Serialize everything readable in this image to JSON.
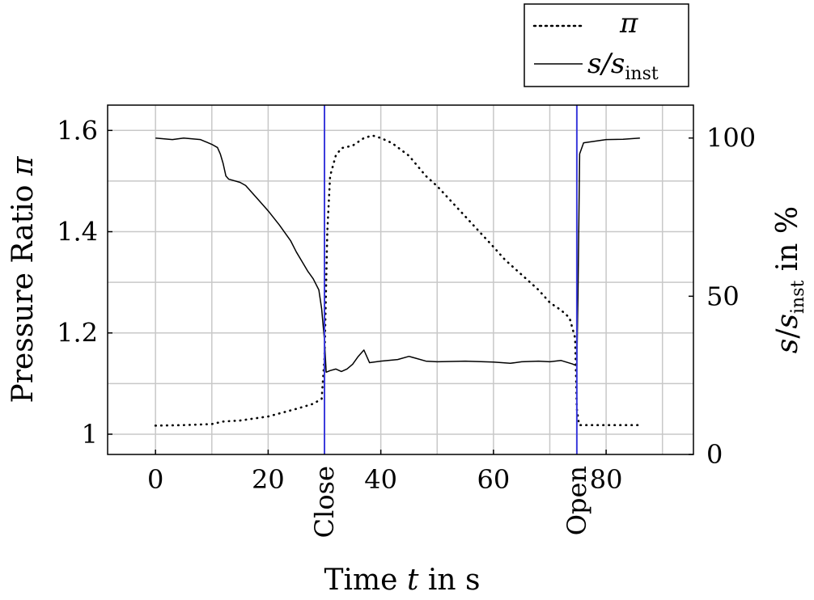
{
  "chart_data": {
    "type": "line",
    "xlabel": "Time t in s",
    "ylabel_left": "Pressure Ratio π",
    "ylabel_right": "s/s_inst in %",
    "xlim": [
      -8.5,
      95.5
    ],
    "ylim_left": [
      0.96,
      1.65
    ],
    "ylim_right": [
      0,
      110.4
    ],
    "grid": true,
    "legend_placement": "top-right, outside plot",
    "x_ticks": [
      {
        "value": 0,
        "label": "0"
      },
      {
        "value": 20,
        "label": "20"
      },
      {
        "value": 40,
        "label": "40"
      },
      {
        "value": 60,
        "label": "60"
      },
      {
        "value": 80,
        "label": "80"
      }
    ],
    "y_ticks_left": [
      {
        "value": 1.0,
        "label": "1"
      },
      {
        "value": 1.2,
        "label": "1.2"
      },
      {
        "value": 1.4,
        "label": "1.4"
      },
      {
        "value": 1.6,
        "label": "1.6"
      }
    ],
    "y_ticks_right": [
      {
        "value": 0,
        "label": "0"
      },
      {
        "value": 50,
        "label": "50"
      },
      {
        "value": 100,
        "label": "100"
      }
    ],
    "markers": [
      {
        "x": 30,
        "label": "Close",
        "color": "#3b3bdc"
      },
      {
        "x": 74.8,
        "label": "Open",
        "color": "#3b3bdc"
      }
    ],
    "series": [
      {
        "name": "π",
        "axis": "left",
        "style": "dotted",
        "x": [
          0,
          5,
          10,
          12,
          15,
          20,
          25,
          28,
          29.5,
          30,
          30.5,
          31,
          32,
          33,
          35,
          37,
          38.5,
          40,
          42,
          45,
          48,
          50,
          55,
          60,
          62,
          65,
          68,
          70,
          72,
          73.5,
          74.5,
          74.8,
          75.2,
          77,
          80,
          86
        ],
        "y": [
          1.017,
          1.018,
          1.02,
          1.025,
          1.027,
          1.035,
          1.05,
          1.06,
          1.07,
          1.15,
          1.4,
          1.51,
          1.55,
          1.565,
          1.57,
          1.585,
          1.59,
          1.585,
          1.575,
          1.55,
          1.51,
          1.49,
          1.43,
          1.37,
          1.345,
          1.315,
          1.285,
          1.26,
          1.245,
          1.23,
          1.19,
          1.05,
          1.018,
          1.018,
          1.018,
          1.018
        ]
      },
      {
        "name": "s/s_inst",
        "axis": "right",
        "style": "solid",
        "x": [
          0,
          3,
          5,
          8,
          10,
          11,
          11.5,
          12,
          12.5,
          13,
          15,
          16,
          18,
          20,
          22,
          24,
          25,
          26,
          27,
          28,
          29,
          29.5,
          30,
          30.3,
          31,
          32,
          33,
          34,
          35,
          36,
          37,
          38,
          40,
          43,
          45,
          46,
          48,
          50,
          55,
          60,
          63,
          65,
          68,
          70,
          72,
          74,
          74.8,
          75,
          75.3,
          76,
          78,
          80,
          83,
          86
        ],
        "y": [
          100,
          99.5,
          100,
          99.5,
          98,
          97,
          95,
          92,
          88,
          87,
          86,
          85,
          81,
          77,
          72.5,
          67.5,
          64,
          61,
          58,
          55.5,
          52,
          46,
          36,
          26,
          26.5,
          27,
          26.2,
          27,
          28.5,
          31,
          33,
          29,
          29.5,
          30,
          31,
          30.5,
          29.5,
          29.3,
          29.5,
          29.2,
          28.8,
          29.3,
          29.5,
          29.3,
          29.7,
          28.6,
          28,
          50,
          95,
          98.5,
          99,
          99.5,
          99.6,
          100
        ]
      }
    ]
  }
}
